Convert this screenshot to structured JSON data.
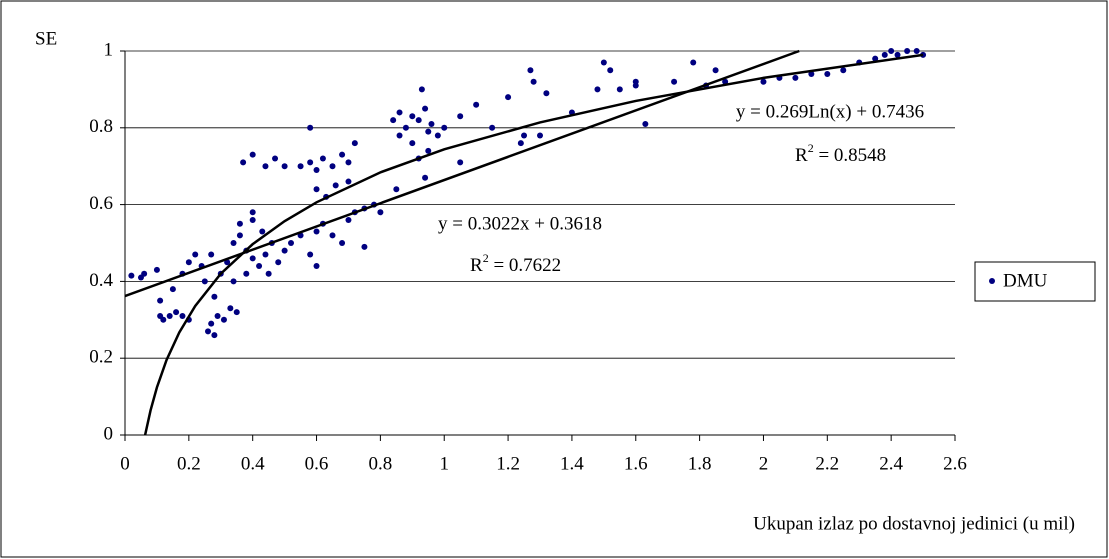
{
  "chart_data": {
    "type": "scatter",
    "ylabel": "SE",
    "xlabel": "Ukupan izlaz po dostavnoj jedinici (u mil)",
    "xlim": [
      0,
      2.6
    ],
    "xticks": [
      0,
      0.2,
      0.4,
      0.6,
      0.8,
      1,
      1.2,
      1.4,
      1.6,
      1.8,
      2,
      2.2,
      2.4,
      2.6
    ],
    "ylim": [
      0,
      1
    ],
    "yticks": [
      0,
      0.2,
      0.4,
      0.6,
      0.8,
      1
    ],
    "grid": true,
    "legend": "right",
    "series": [
      {
        "name": "DMU",
        "color": "#000080",
        "x": [
          0.02,
          0.05,
          0.06,
          0.1,
          0.11,
          0.12,
          0.14,
          0.16,
          0.18,
          0.2,
          0.11,
          0.15,
          0.18,
          0.2,
          0.22,
          0.24,
          0.25,
          0.27,
          0.28,
          0.3,
          0.26,
          0.27,
          0.29,
          0.31,
          0.33,
          0.35,
          0.28,
          0.32,
          0.34,
          0.36,
          0.38,
          0.4,
          0.42,
          0.44,
          0.46,
          0.48,
          0.5,
          0.36,
          0.4,
          0.38,
          0.45,
          0.34,
          0.4,
          0.43,
          0.52,
          0.55,
          0.58,
          0.6,
          0.62,
          0.65,
          0.68,
          0.7,
          0.72,
          0.75,
          0.6,
          0.37,
          0.4,
          0.44,
          0.47,
          0.5,
          0.55,
          0.58,
          0.6,
          0.62,
          0.65,
          0.68,
          0.7,
          0.72,
          0.58,
          0.6,
          0.66,
          0.63,
          0.7,
          0.75,
          0.78,
          0.8,
          0.84,
          0.86,
          0.88,
          0.9,
          0.92,
          0.94,
          0.96,
          0.86,
          0.93,
          0.95,
          0.98,
          0.95,
          0.94,
          0.92,
          0.85,
          0.9,
          1.0,
          1.05,
          1.1,
          1.15,
          1.2,
          1.25,
          1.27,
          1.28,
          1.32,
          1.24,
          1.05,
          1.3,
          1.5,
          1.52,
          1.48,
          1.55,
          1.6,
          1.6,
          1.63,
          1.4,
          1.72,
          1.78,
          1.82,
          1.85,
          1.88,
          2.0,
          2.05,
          2.1,
          2.15,
          2.2,
          2.25,
          2.3,
          2.35,
          2.38,
          2.4,
          2.42,
          2.45,
          2.48,
          2.5
        ],
        "values": [
          0.415,
          0.41,
          0.42,
          0.43,
          0.31,
          0.3,
          0.31,
          0.32,
          0.31,
          0.3,
          0.35,
          0.38,
          0.42,
          0.45,
          0.47,
          0.44,
          0.4,
          0.47,
          0.36,
          0.42,
          0.27,
          0.29,
          0.31,
          0.3,
          0.33,
          0.32,
          0.26,
          0.45,
          0.5,
          0.52,
          0.48,
          0.46,
          0.44,
          0.47,
          0.5,
          0.45,
          0.48,
          0.55,
          0.56,
          0.42,
          0.42,
          0.4,
          0.58,
          0.53,
          0.5,
          0.52,
          0.47,
          0.44,
          0.55,
          0.52,
          0.5,
          0.56,
          0.58,
          0.49,
          0.53,
          0.71,
          0.73,
          0.7,
          0.72,
          0.7,
          0.7,
          0.71,
          0.69,
          0.72,
          0.7,
          0.73,
          0.71,
          0.76,
          0.8,
          0.64,
          0.65,
          0.62,
          0.66,
          0.59,
          0.6,
          0.58,
          0.82,
          0.84,
          0.8,
          0.83,
          0.82,
          0.85,
          0.81,
          0.78,
          0.9,
          0.79,
          0.78,
          0.74,
          0.67,
          0.72,
          0.64,
          0.76,
          0.8,
          0.83,
          0.86,
          0.8,
          0.88,
          0.78,
          0.95,
          0.92,
          0.89,
          0.76,
          0.71,
          0.78,
          0.97,
          0.95,
          0.9,
          0.9,
          0.91,
          0.92,
          0.81,
          0.84,
          0.92,
          0.97,
          0.91,
          0.95,
          0.92,
          0.92,
          0.93,
          0.93,
          0.94,
          0.94,
          0.95,
          0.97,
          0.98,
          0.99,
          1.0,
          0.99,
          1.0,
          1.0,
          0.99
        ]
      }
    ],
    "trendlines": [
      {
        "x": [
          0,
          2.112
        ],
        "values": [
          0.3618,
          1.0
        ]
      },
      {
        "x": [
          0.063,
          0.08,
          0.1,
          0.13,
          0.17,
          0.22,
          0.3,
          0.4,
          0.5,
          0.6,
          0.8,
          1,
          1.3,
          1.6,
          2,
          2.5
        ],
        "values": [
          0,
          0.064,
          0.124,
          0.195,
          0.267,
          0.336,
          0.42,
          0.497,
          0.557,
          0.606,
          0.684,
          0.744,
          0.814,
          0.87,
          0.93,
          0.99
        ]
      }
    ],
    "annotations": [
      {
        "text": "y = 0.3022x + 0.3618",
        "r_base": "R",
        "r_sup": "2",
        "r_text": " = 0.7622"
      },
      {
        "text": "y = 0.269Ln(x) + 0.7436",
        "r_base": "R",
        "r_sup": "2",
        "r_text": " = 0.8548"
      }
    ]
  }
}
